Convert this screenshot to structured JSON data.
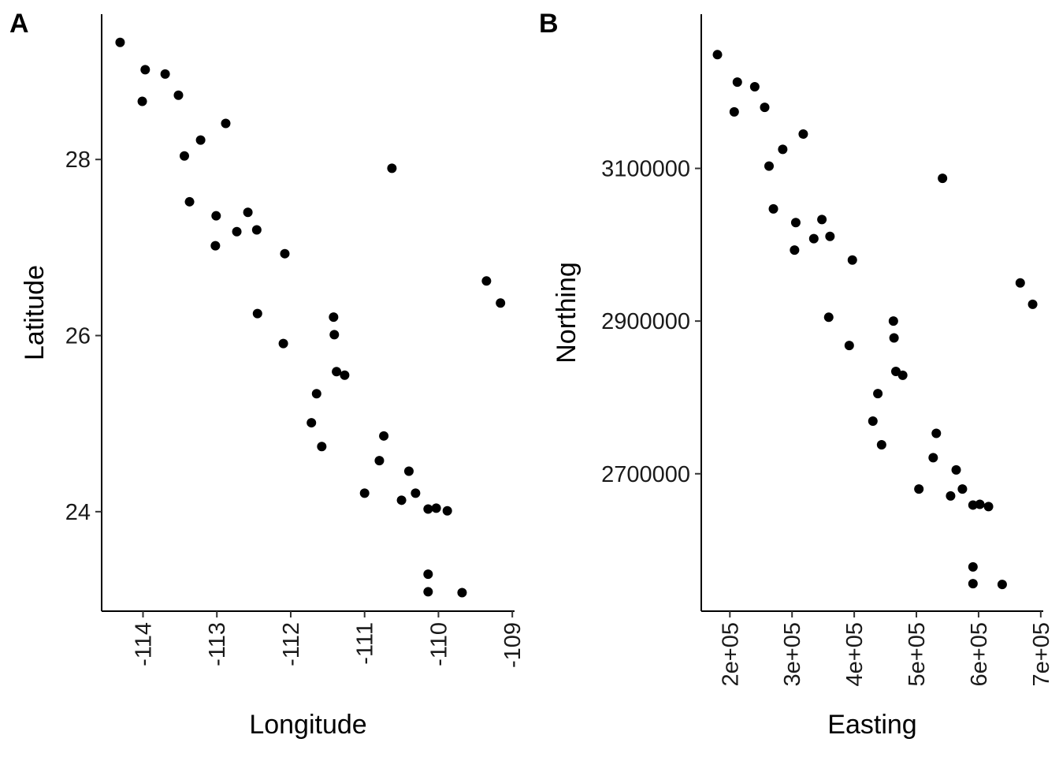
{
  "chart_data": [
    {
      "type": "scatter",
      "panel_label": "A",
      "xlabel": "Longitude",
      "ylabel": "Latitude",
      "xlim": [
        -114.56,
        -108.97
      ],
      "ylim": [
        22.87,
        29.65
      ],
      "x_ticks": [
        -114,
        -113,
        -112,
        -111,
        -110,
        -109
      ],
      "x_tick_labels": [
        "-114",
        "-113",
        "-112",
        "-111",
        "-110",
        "-109"
      ],
      "y_ticks": [
        24,
        26,
        28
      ],
      "y_tick_labels": [
        "24",
        "26",
        "28"
      ],
      "grid": false,
      "legend": "none",
      "point_color": "#000000",
      "points": [
        [
          -114.31,
          29.33
        ],
        [
          -113.97,
          29.02
        ],
        [
          -113.7,
          28.97
        ],
        [
          -113.52,
          28.73
        ],
        [
          -114.01,
          28.66
        ],
        [
          -112.88,
          28.41
        ],
        [
          -113.22,
          28.22
        ],
        [
          -113.44,
          28.04
        ],
        [
          -110.63,
          27.9
        ],
        [
          -113.37,
          27.52
        ],
        [
          -112.58,
          27.4
        ],
        [
          -113.01,
          27.36
        ],
        [
          -112.46,
          27.2
        ],
        [
          -112.73,
          27.18
        ],
        [
          -113.02,
          27.02
        ],
        [
          -112.08,
          26.93
        ],
        [
          -109.35,
          26.62
        ],
        [
          -109.16,
          26.37
        ],
        [
          -112.45,
          26.25
        ],
        [
          -111.42,
          26.21
        ],
        [
          -111.41,
          26.01
        ],
        [
          -112.1,
          25.91
        ],
        [
          -111.38,
          25.59
        ],
        [
          -111.27,
          25.55
        ],
        [
          -111.65,
          25.34
        ],
        [
          -111.72,
          25.01
        ],
        [
          -110.74,
          24.86
        ],
        [
          -111.58,
          24.74
        ],
        [
          -110.8,
          24.58
        ],
        [
          -110.4,
          24.46
        ],
        [
          -111.0,
          24.21
        ],
        [
          -110.31,
          24.21
        ],
        [
          -110.5,
          24.13
        ],
        [
          -110.14,
          24.03
        ],
        [
          -110.03,
          24.04
        ],
        [
          -109.88,
          24.01
        ],
        [
          -110.14,
          23.29
        ],
        [
          -110.14,
          23.09
        ],
        [
          -109.68,
          23.08
        ]
      ]
    },
    {
      "type": "scatter",
      "panel_label": "B",
      "xlabel": "Easting",
      "ylabel": "Northing",
      "xlim": [
        154000,
        704000
      ],
      "ylim": [
        2520000,
        3302000
      ],
      "x_ticks": [
        200000,
        300000,
        400000,
        500000,
        600000,
        700000
      ],
      "x_tick_labels": [
        "2e+05",
        "3e+05",
        "4e+05",
        "5e+05",
        "6e+05",
        "7e+05"
      ],
      "y_ticks": [
        2700000,
        2900000,
        3100000
      ],
      "y_tick_labels": [
        "2700000",
        "2900000",
        "3100000"
      ],
      "grid": false,
      "legend": "none",
      "point_color": "#000000",
      "points": [
        [
          180000,
          3249000
        ],
        [
          212000,
          3213000
        ],
        [
          240000,
          3207000
        ],
        [
          256000,
          3180000
        ],
        [
          207000,
          3174000
        ],
        [
          318000,
          3145000
        ],
        [
          285000,
          3125000
        ],
        [
          263000,
          3103000
        ],
        [
          542000,
          3087000
        ],
        [
          270000,
          3047000
        ],
        [
          348000,
          3033000
        ],
        [
          306000,
          3029000
        ],
        [
          361000,
          3011000
        ],
        [
          335000,
          3008000
        ],
        [
          304000,
          2993000
        ],
        [
          397000,
          2980000
        ],
        [
          667000,
          2950000
        ],
        [
          687000,
          2922000
        ],
        [
          359000,
          2905000
        ],
        [
          463000,
          2900000
        ],
        [
          464000,
          2878000
        ],
        [
          392000,
          2868000
        ],
        [
          467000,
          2834000
        ],
        [
          478000,
          2829000
        ],
        [
          438000,
          2805000
        ],
        [
          430000,
          2769000
        ],
        [
          532000,
          2753000
        ],
        [
          444000,
          2738000
        ],
        [
          527000,
          2721000
        ],
        [
          564000,
          2705000
        ],
        [
          504000,
          2680000
        ],
        [
          574000,
          2680000
        ],
        [
          555000,
          2671000
        ],
        [
          591000,
          2659000
        ],
        [
          602000,
          2660000
        ],
        [
          616000,
          2657000
        ],
        [
          591000,
          2578000
        ],
        [
          591000,
          2556000
        ],
        [
          638000,
          2555000
        ]
      ]
    }
  ]
}
